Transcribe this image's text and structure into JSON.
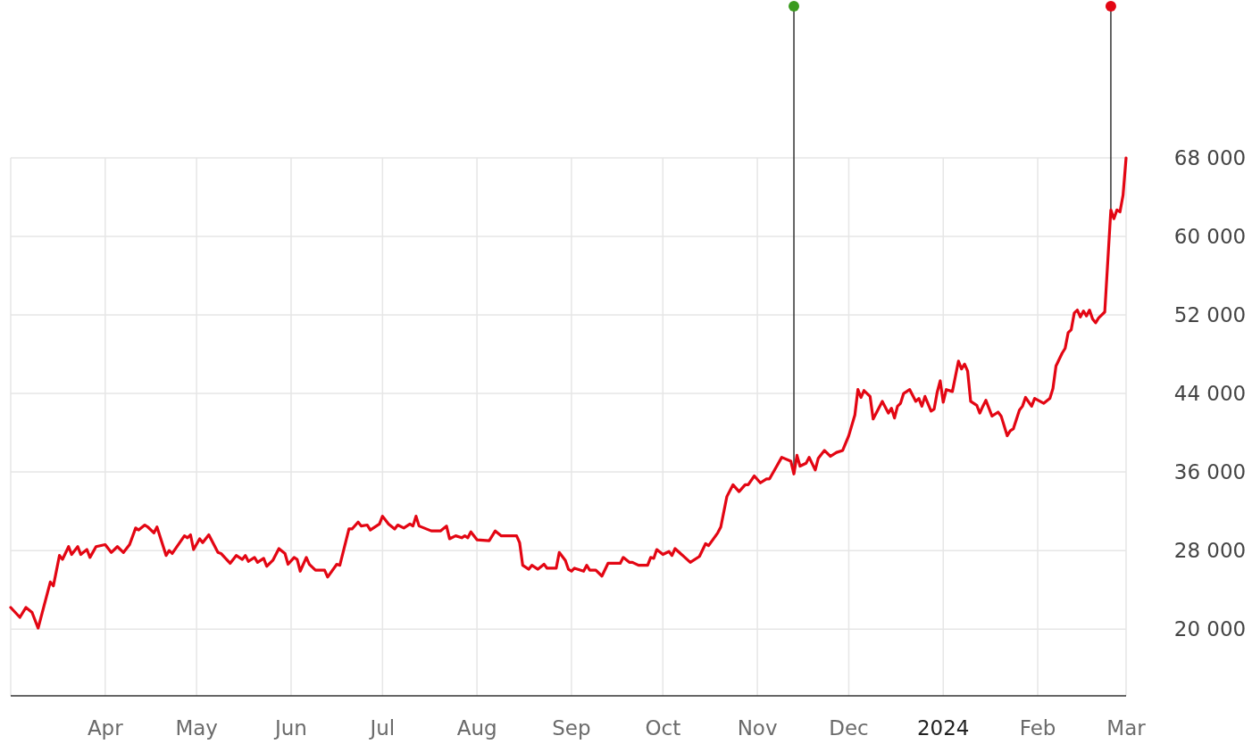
{
  "chart_data": {
    "type": "line",
    "color": "#e30613",
    "grid": true,
    "xlim": [
      "2023-03-01",
      "2024-03-01"
    ],
    "xticks": [
      {
        "value": "2023-04-01",
        "label": "Apr"
      },
      {
        "value": "2023-05-01",
        "label": "May"
      },
      {
        "value": "2023-06-01",
        "label": "Jun"
      },
      {
        "value": "2023-07-01",
        "label": "Jul"
      },
      {
        "value": "2023-08-01",
        "label": "Aug"
      },
      {
        "value": "2023-09-01",
        "label": "Sep"
      },
      {
        "value": "2023-10-01",
        "label": "Oct"
      },
      {
        "value": "2023-11-01",
        "label": "Nov"
      },
      {
        "value": "2023-12-01",
        "label": "Dec"
      },
      {
        "value": "2024-01-01",
        "label": "2024"
      },
      {
        "value": "2024-02-01",
        "label": "Feb"
      },
      {
        "value": "2024-03-01",
        "label": "Mar"
      }
    ],
    "ylim": [
      13200,
      68000
    ],
    "yticks": [
      {
        "value": 20000,
        "label": "20 000"
      },
      {
        "value": 28000,
        "label": "28 000"
      },
      {
        "value": 36000,
        "label": "36 000"
      },
      {
        "value": 44000,
        "label": "44 000"
      },
      {
        "value": 52000,
        "label": "52 000"
      },
      {
        "value": 60000,
        "label": "60 000"
      },
      {
        "value": 68000,
        "label": "68 000"
      }
    ],
    "ref_lines": [
      {
        "axis": "x",
        "value": "2023-11-13",
        "color": "#333333"
      },
      {
        "axis": "x",
        "value": "2024-02-25",
        "color": "#333333"
      }
    ],
    "x": [
      "2023-03-01",
      "2023-03-04",
      "2023-03-06",
      "2023-03-08",
      "2023-03-10",
      "2023-03-14",
      "2023-03-15",
      "2023-03-17",
      "2023-03-18",
      "2023-03-20",
      "2023-03-21",
      "2023-03-23",
      "2023-03-24",
      "2023-03-26",
      "2023-03-27",
      "2023-03-29",
      "2023-04-01",
      "2023-04-03",
      "2023-04-05",
      "2023-04-07",
      "2023-04-09",
      "2023-04-11",
      "2023-04-12",
      "2023-04-14",
      "2023-04-15",
      "2023-04-17",
      "2023-04-18",
      "2023-04-21",
      "2023-04-22",
      "2023-04-23",
      "2023-04-27",
      "2023-04-28",
      "2023-04-29",
      "2023-04-30",
      "2023-05-02",
      "2023-05-03",
      "2023-05-05",
      "2023-05-08",
      "2023-05-09",
      "2023-05-12",
      "2023-05-14",
      "2023-05-16",
      "2023-05-17",
      "2023-05-18",
      "2023-05-20",
      "2023-05-21",
      "2023-05-23",
      "2023-05-24",
      "2023-05-26",
      "2023-05-28",
      "2023-05-30",
      "2023-05-31",
      "2023-06-02",
      "2023-06-03",
      "2023-06-04",
      "2023-06-06",
      "2023-06-07",
      "2023-06-09",
      "2023-06-12",
      "2023-06-13",
      "2023-06-16",
      "2023-06-17",
      "2023-06-20",
      "2023-06-21",
      "2023-06-23",
      "2023-06-24",
      "2023-06-26",
      "2023-06-27",
      "2023-06-30",
      "2023-07-01",
      "2023-07-03",
      "2023-07-05",
      "2023-07-06",
      "2023-07-08",
      "2023-07-10",
      "2023-07-11",
      "2023-07-12",
      "2023-07-13",
      "2023-07-17",
      "2023-07-20",
      "2023-07-22",
      "2023-07-23",
      "2023-07-25",
      "2023-07-27",
      "2023-07-28",
      "2023-07-29",
      "2023-07-30",
      "2023-08-01",
      "2023-08-05",
      "2023-08-07",
      "2023-08-09",
      "2023-08-14",
      "2023-08-15",
      "2023-08-16",
      "2023-08-18",
      "2023-08-19",
      "2023-08-21",
      "2023-08-23",
      "2023-08-24",
      "2023-08-27",
      "2023-08-28",
      "2023-08-30",
      "2023-08-31",
      "2023-09-01",
      "2023-09-02",
      "2023-09-05",
      "2023-09-06",
      "2023-09-07",
      "2023-09-09",
      "2023-09-11",
      "2023-09-13",
      "2023-09-17",
      "2023-09-18",
      "2023-09-20",
      "2023-09-21",
      "2023-09-23",
      "2023-09-26",
      "2023-09-27",
      "2023-09-28",
      "2023-09-29",
      "2023-10-01",
      "2023-10-03",
      "2023-10-04",
      "2023-10-05",
      "2023-10-10",
      "2023-10-13",
      "2023-10-15",
      "2023-10-16",
      "2023-10-19",
      "2023-10-20",
      "2023-10-22",
      "2023-10-24",
      "2023-10-26",
      "2023-10-28",
      "2023-10-29",
      "2023-10-31",
      "2023-11-02",
      "2023-11-04",
      "2023-11-05",
      "2023-11-07",
      "2023-11-09",
      "2023-11-12",
      "2023-11-13",
      "2023-11-14",
      "2023-11-15",
      "2023-11-17",
      "2023-11-18",
      "2023-11-20",
      "2023-11-21",
      "2023-11-23",
      "2023-11-25",
      "2023-11-27",
      "2023-11-29",
      "2023-12-01",
      "2023-12-03",
      "2023-12-04",
      "2023-12-05",
      "2023-12-06",
      "2023-12-08",
      "2023-12-09",
      "2023-12-12",
      "2023-12-14",
      "2023-12-15",
      "2023-12-16",
      "2023-12-17",
      "2023-12-18",
      "2023-12-19",
      "2023-12-21",
      "2023-12-23",
      "2023-12-24",
      "2023-12-25",
      "2023-12-26",
      "2023-12-28",
      "2023-12-29",
      "2023-12-30",
      "2023-12-31",
      "2024-01-01",
      "2024-01-02",
      "2024-01-04",
      "2024-01-06",
      "2024-01-07",
      "2024-01-08",
      "2024-01-09",
      "2024-01-10",
      "2024-01-12",
      "2024-01-13",
      "2024-01-14",
      "2024-01-15",
      "2024-01-17",
      "2024-01-19",
      "2024-01-20",
      "2024-01-22",
      "2024-01-23",
      "2024-01-24",
      "2024-01-26",
      "2024-01-27",
      "2024-01-28",
      "2024-01-30",
      "2024-01-31",
      "2024-02-03",
      "2024-02-05",
      "2024-02-06",
      "2024-02-07",
      "2024-02-09",
      "2024-02-10",
      "2024-02-11",
      "2024-02-12",
      "2024-02-13",
      "2024-02-14",
      "2024-02-15",
      "2024-02-16",
      "2024-02-17",
      "2024-02-18",
      "2024-02-19",
      "2024-02-20",
      "2024-02-21",
      "2024-02-23",
      "2024-02-25",
      "2024-02-26",
      "2024-02-27",
      "2024-02-28",
      "2024-02-29",
      "2024-03-01"
    ],
    "values": [
      22200,
      21200,
      22200,
      21700,
      20100,
      24800,
      24400,
      27500,
      27100,
      28400,
      27600,
      28400,
      27600,
      28100,
      27300,
      28400,
      28600,
      27800,
      28400,
      27800,
      28600,
      30300,
      30100,
      30600,
      30400,
      29800,
      30400,
      27500,
      28000,
      27700,
      29500,
      29300,
      29600,
      28100,
      29200,
      28800,
      29600,
      27800,
      27700,
      26700,
      27500,
      27100,
      27500,
      26900,
      27300,
      26800,
      27200,
      26400,
      27000,
      28200,
      27700,
      26600,
      27300,
      27100,
      25900,
      27300,
      26600,
      26000,
      26000,
      25300,
      26600,
      26500,
      30200,
      30200,
      30900,
      30500,
      30600,
      30100,
      30700,
      31500,
      30700,
      30200,
      30600,
      30300,
      30700,
      30500,
      31500,
      30500,
      30000,
      30000,
      30500,
      29200,
      29500,
      29300,
      29500,
      29300,
      29900,
      29100,
      29000,
      30000,
      29500,
      29500,
      28800,
      26500,
      26100,
      26500,
      26100,
      26600,
      26200,
      26200,
      27800,
      27000,
      26100,
      25900,
      26200,
      25900,
      26500,
      26000,
      26000,
      25400,
      26700,
      26700,
      27300,
      26800,
      26800,
      26500,
      26500,
      27300,
      27200,
      28100,
      27600,
      27900,
      27500,
      28200,
      26800,
      27400,
      28700,
      28500,
      29800,
      30400,
      33500,
      34700,
      34000,
      34700,
      34700,
      35600,
      34900,
      35300,
      35300,
      36400,
      37500,
      37100,
      35800,
      37700,
      36600,
      36900,
      37500,
      36200,
      37400,
      38200,
      37600,
      38000,
      38200,
      39700,
      41800,
      44400,
      43600,
      44300,
      43700,
      41400,
      43200,
      42000,
      42500,
      41500,
      42700,
      43000,
      44000,
      44400,
      43200,
      43500,
      42700,
      43700,
      42200,
      42400,
      44100,
      45300,
      43100,
      44400,
      44200,
      47300,
      46500,
      47000,
      46300,
      43200,
      42800,
      42000,
      42700,
      43300,
      41700,
      42100,
      41700,
      39700,
      40200,
      40400,
      42300,
      42700,
      43600,
      42700,
      43500,
      43000,
      43500,
      44500,
      46800,
      48100,
      48600,
      50200,
      50500,
      52200,
      52500,
      51800,
      52400,
      51900,
      52500,
      51600,
      51200,
      51700,
      52300,
      62700,
      61800,
      62700,
      62500,
      64200,
      68000
    ]
  }
}
